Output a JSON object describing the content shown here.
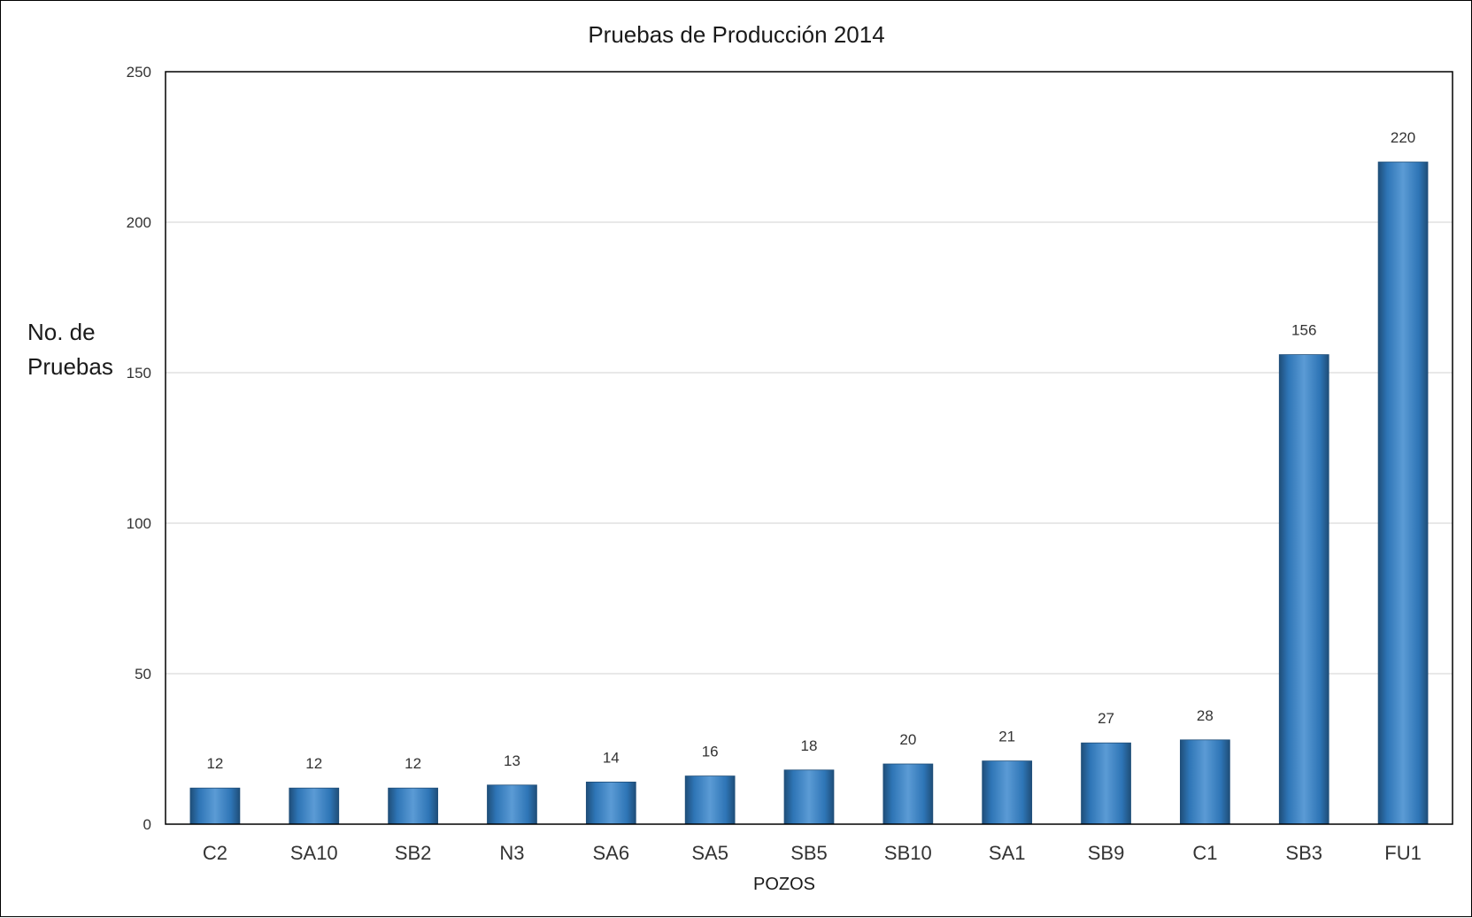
{
  "chart_data": {
    "type": "bar",
    "title": "Pruebas de Producción 2014",
    "xlabel": "POZOS",
    "ylabel_lines": [
      "No. de",
      "Pruebas"
    ],
    "ylim": [
      0,
      250
    ],
    "yticks": [
      0,
      50,
      100,
      150,
      200,
      250
    ],
    "categories": [
      "C2",
      "SA10",
      "SB2",
      "N3",
      "SA6",
      "SA5",
      "SB5",
      "SB10",
      "SA1",
      "SB9",
      "C1",
      "SB3",
      "FU1"
    ],
    "values": [
      12,
      12,
      12,
      13,
      14,
      16,
      18,
      20,
      21,
      27,
      28,
      156,
      220
    ],
    "grid": true,
    "legend": "none",
    "colors": {
      "bar_light": "#5b9bd5",
      "bar_mid": "#2e75b6",
      "bar_dark": "#1f4e79",
      "gridline": "#d9d9d9",
      "axis": "#000000"
    }
  }
}
